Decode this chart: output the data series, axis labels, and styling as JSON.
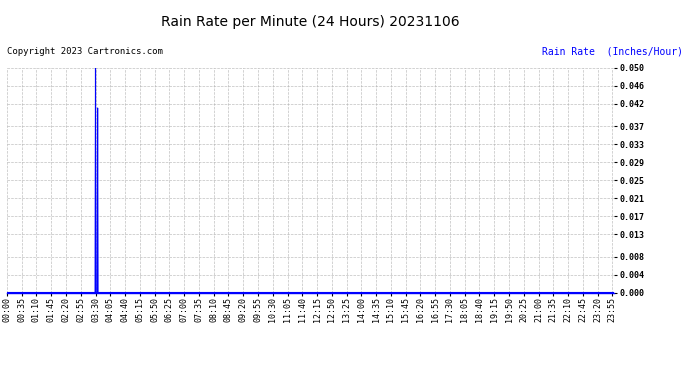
{
  "title": "Rain Rate per Minute (24 Hours) 20231106",
  "copyright_text": "Copyright 2023 Cartronics.com",
  "ylabel": "Rain Rate  (Inches/Hour)",
  "ylabel_color": "#0000ff",
  "line_color": "#0000ff",
  "background_color": "#ffffff",
  "grid_color": "#b0b0b0",
  "ylim": [
    0.0,
    0.05
  ],
  "yticks": [
    0.0,
    0.004,
    0.008,
    0.013,
    0.017,
    0.021,
    0.025,
    0.029,
    0.033,
    0.037,
    0.042,
    0.046,
    0.05
  ],
  "spike_minute": 210,
  "spike_value": 0.05,
  "spike2_minute": 215,
  "spike2_value": 0.041,
  "total_minutes": 1440,
  "x_tick_interval": 35,
  "x_tick_labels": [
    "00:00",
    "00:35",
    "01:10",
    "01:45",
    "02:20",
    "02:55",
    "03:30",
    "04:05",
    "04:40",
    "05:15",
    "05:50",
    "06:25",
    "07:00",
    "07:35",
    "08:10",
    "08:45",
    "09:20",
    "09:55",
    "10:30",
    "11:05",
    "11:40",
    "12:15",
    "12:50",
    "13:25",
    "14:00",
    "14:35",
    "15:10",
    "15:45",
    "16:20",
    "16:55",
    "17:30",
    "18:05",
    "18:40",
    "19:15",
    "19:50",
    "20:25",
    "21:00",
    "21:35",
    "22:10",
    "22:45",
    "23:20",
    "23:55"
  ],
  "title_fontsize": 10,
  "tick_fontsize": 6,
  "ylabel_fontsize": 7,
  "copyright_fontsize": 6.5
}
